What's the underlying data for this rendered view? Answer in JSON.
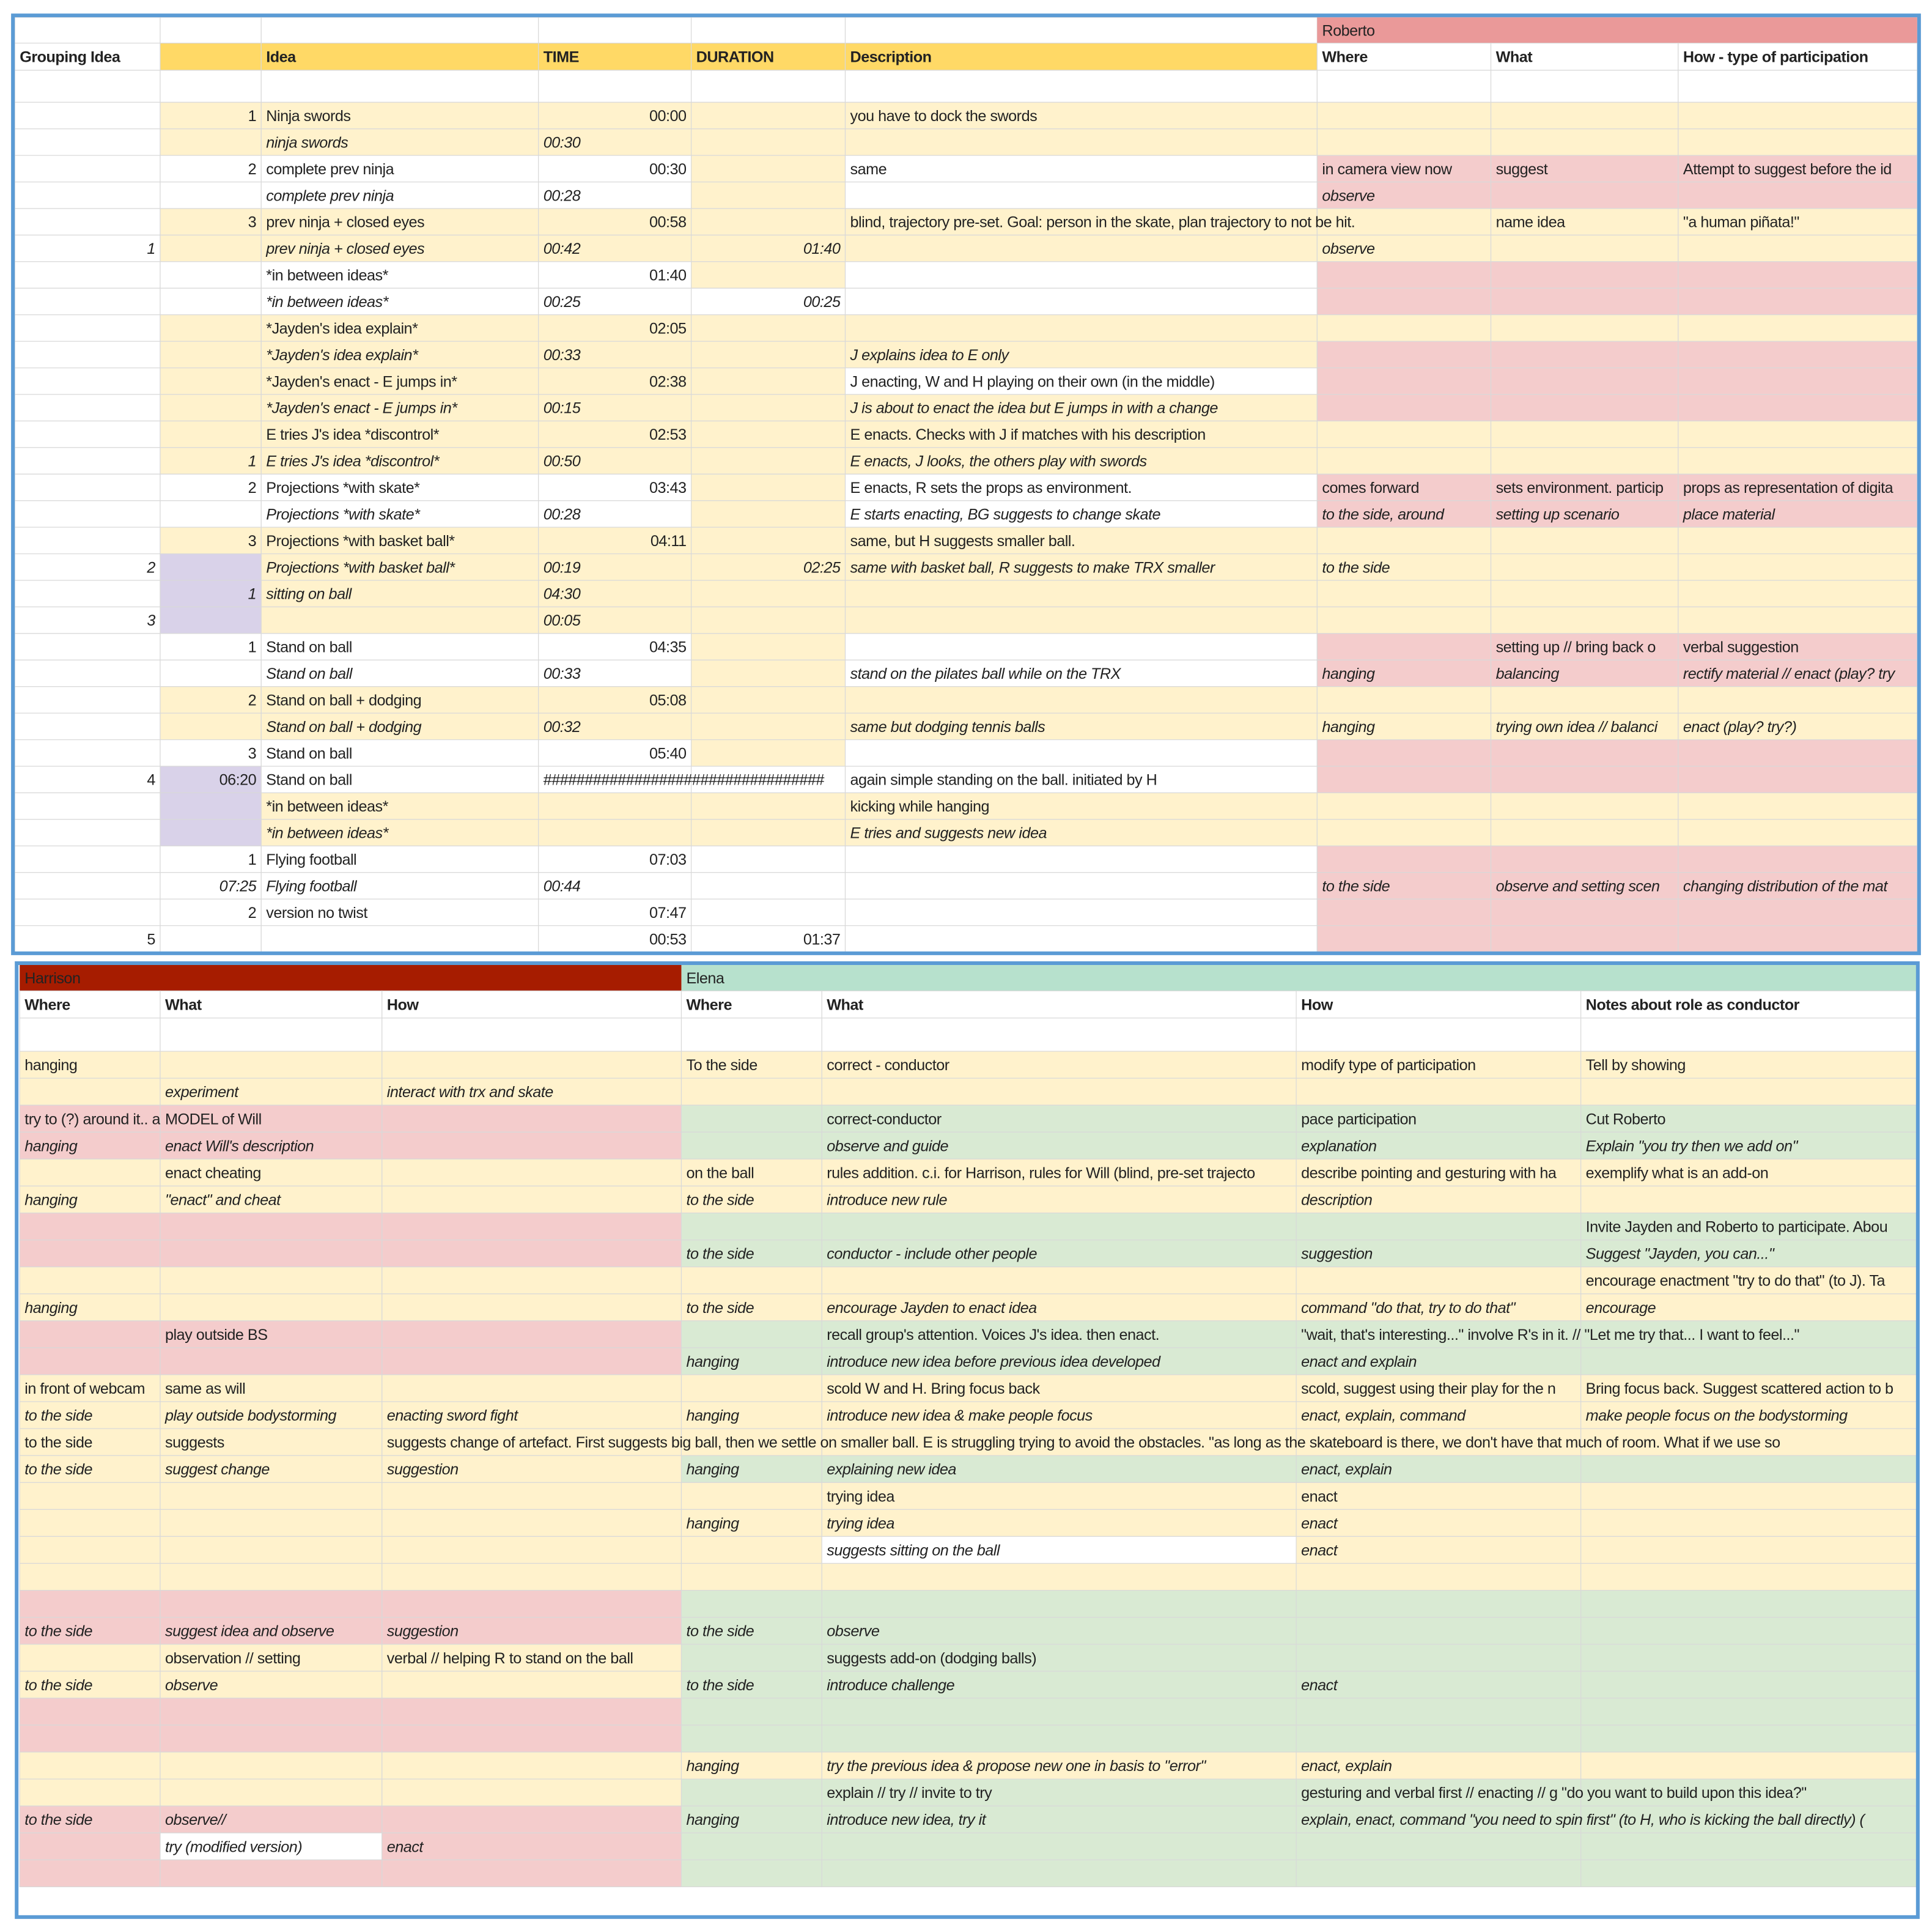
{
  "top": {
    "group": "Roberto",
    "columns": [
      "Grouping Idea",
      null,
      "Idea",
      "TIME",
      "DURATION",
      "Description",
      "Where",
      "What",
      "How - type of participation"
    ],
    "rows": [
      [
        null,
        "1",
        "Ninja swords",
        "00:00",
        null,
        "you have to dock the swords",
        null,
        null,
        null
      ],
      [
        null,
        null,
        "ninja swords",
        "00:30",
        null,
        null,
        null,
        null,
        null
      ],
      [
        null,
        "2",
        "complete prev ninja",
        "00:30",
        null,
        "same",
        "in camera view now",
        "suggest",
        "Attempt to suggest before the id"
      ],
      [
        null,
        null,
        "complete prev ninja",
        "00:28",
        null,
        null,
        "observe",
        null,
        null
      ],
      [
        null,
        "3",
        "prev ninja + closed eyes",
        "00:58",
        null,
        "blind, trajectory pre-set. Goal: person in the skate, plan trajectory to not be hit.",
        null,
        "name idea",
        "\"a human piñata!\""
      ],
      [
        "1",
        null,
        "prev ninja + closed eyes",
        "00:42",
        "01:40",
        null,
        "observe",
        null,
        null
      ],
      [
        null,
        null,
        "*in between ideas*",
        "01:40",
        null,
        null,
        null,
        null,
        null
      ],
      [
        null,
        null,
        "*in between ideas*",
        "00:25",
        "00:25",
        null,
        null,
        null,
        null
      ],
      [
        null,
        null,
        "*Jayden's idea explain*",
        "02:05",
        null,
        null,
        null,
        null,
        null
      ],
      [
        null,
        null,
        "*Jayden's idea explain*",
        "00:33",
        null,
        "J explains idea to E only",
        null,
        null,
        null
      ],
      [
        null,
        null,
        "*Jayden's enact - E jumps in*",
        "02:38",
        null,
        "J enacting, W and H playing on their own (in the middle)",
        null,
        null,
        null
      ],
      [
        null,
        null,
        "*Jayden's enact - E jumps in*",
        "00:15",
        null,
        "J is about to enact the idea but E jumps in with a change",
        null,
        null,
        null
      ],
      [
        null,
        null,
        "E tries J's idea *discontrol*",
        "02:53",
        null,
        "E enacts. Checks with J if matches with his description",
        null,
        null,
        null
      ],
      [
        null,
        "1",
        "E tries J's idea *discontrol*",
        "00:50",
        null,
        "E enacts, J looks, the others play with swords",
        null,
        null,
        null
      ],
      [
        null,
        "2",
        "Projections *with skate*",
        "03:43",
        null,
        "E enacts, R sets the props as environment.",
        "comes forward",
        "sets environment. particip",
        "props as representation of digita"
      ],
      [
        null,
        null,
        "Projections *with skate*",
        "00:28",
        null,
        "E starts enacting, BG suggests to change skate",
        "to the side, around",
        "setting up scenario",
        "place material"
      ],
      [
        null,
        "3",
        "Projections *with basket ball*",
        "04:11",
        null,
        "same, but H suggests smaller ball.",
        null,
        null,
        null
      ],
      [
        "2",
        null,
        "Projections *with basket ball*",
        "00:19",
        "02:25",
        "same with basket ball, R suggests to make TRX smaller",
        "to the side",
        null,
        null
      ],
      [
        null,
        "1",
        "sitting on ball",
        "04:30",
        null,
        null,
        null,
        null,
        null
      ],
      [
        "3",
        null,
        null,
        "00:05",
        null,
        null,
        null,
        null,
        null
      ],
      [
        null,
        "1",
        "Stand on ball",
        "04:35",
        null,
        null,
        null,
        "setting up // bring back o",
        "verbal suggestion"
      ],
      [
        null,
        null,
        "Stand on ball",
        "00:33",
        null,
        "stand on the pilates ball while on the TRX",
        "hanging",
        "balancing",
        "rectify material // enact (play? try"
      ],
      [
        null,
        "2",
        "Stand on ball + dodging",
        "05:08",
        null,
        null,
        null,
        null,
        null
      ],
      [
        null,
        null,
        "Stand on ball + dodging",
        "00:32",
        null,
        "same but dodging tennis balls",
        "hanging",
        "trying own idea // balanci",
        "enact (play? try?)"
      ],
      [
        null,
        "3",
        "Stand on ball",
        "05:40",
        null,
        null,
        null,
        null,
        null
      ],
      [
        "4",
        "06:20",
        "Stand on ball",
        "##################################",
        null,
        "again simple standing on the ball. initiated by H",
        null,
        null,
        null
      ],
      [
        null,
        null,
        "*in between ideas*",
        null,
        null,
        "kicking while hanging",
        null,
        null,
        null
      ],
      [
        null,
        null,
        "*in between ideas*",
        null,
        null,
        "E tries and suggests new idea",
        null,
        null,
        null
      ],
      [
        null,
        "1",
        "Flying football",
        "07:03",
        null,
        null,
        null,
        null,
        null
      ],
      [
        null,
        "07:25",
        "Flying football",
        "00:44",
        null,
        null,
        "to the side",
        "observe and setting scen",
        "changing distribution of the mat"
      ],
      [
        null,
        "2",
        "version no twist",
        "07:47",
        null,
        null,
        null,
        null,
        null
      ],
      [
        "5",
        null,
        null,
        "00:53",
        "01:37",
        null,
        null,
        null,
        null
      ]
    ]
  },
  "bottom": {
    "groups": [
      "Harrison",
      "Elena"
    ],
    "columns": [
      "Where",
      "What",
      "How",
      "Where",
      "What",
      "How",
      "Notes about role as conductor"
    ],
    "rows": [
      [
        "hanging",
        null,
        null,
        "To the side",
        "correct - conductor",
        "modify type of participation",
        "Tell by showing"
      ],
      [
        null,
        "experiment",
        "interact with trx and skate",
        null,
        null,
        null,
        null
      ],
      [
        "try to (?) around it.. a",
        "MODEL of Will",
        null,
        null,
        "correct-conductor",
        "pace participation",
        "Cut Roberto"
      ],
      [
        "hanging",
        "enact Will's description",
        null,
        null,
        "observe and guide",
        "explanation",
        "Explain \"you try then we add on\""
      ],
      [
        null,
        "enact cheating",
        null,
        "on the ball",
        "rules addition. c.i. for Harrison, rules for Will (blind, pre-set trajecto",
        "describe pointing and gesturing with ha",
        "exemplify what is an add-on"
      ],
      [
        "hanging",
        "\"enact\" and cheat",
        null,
        "to the side",
        "introduce new rule",
        "description",
        null
      ],
      [
        null,
        null,
        null,
        null,
        null,
        null,
        "Invite Jayden and Roberto to participate. Abou"
      ],
      [
        null,
        null,
        null,
        "to the side",
        "conductor - include other people",
        "suggestion",
        "Suggest \"Jayden, you can...\""
      ],
      [
        null,
        null,
        null,
        null,
        null,
        null,
        "encourage enactment \"try to do that\" (to J). Ta"
      ],
      [
        "hanging",
        null,
        null,
        "to the side",
        "encourage Jayden to enact idea",
        "command \"do that, try to do that\"",
        "encourage"
      ],
      [
        null,
        "play outside BS",
        null,
        null,
        "recall group's attention. Voices J's idea. then enact.",
        "\"wait, that's interesting...\" involve R's in it. // \"Let me try that... I want to feel...\"",
        null
      ],
      [
        null,
        null,
        null,
        "hanging",
        "introduce new idea before previous idea developed",
        "enact and explain",
        null
      ],
      [
        "in front of webcam",
        "same as will",
        null,
        null,
        "scold W and H. Bring focus back",
        "scold, suggest using their play for the n",
        "Bring focus back. Suggest scattered action to b"
      ],
      [
        "to the side",
        "play outside bodystorming",
        "enacting sword fight",
        "hanging",
        "introduce new idea & make people focus",
        "enact, explain, command",
        "make people focus on the bodystorming"
      ],
      [
        "to the side",
        "suggests",
        "suggests change of artefact. First suggests big ball, then we settle on smaller ball. E is struggling trying to avoid the obstacles. \"as long as the skateboard is there, we don't have that much of room. What if we use so",
        null,
        null,
        null,
        null
      ],
      [
        "to the side",
        "suggest change",
        "suggestion",
        "hanging",
        "explaining new idea",
        "enact, explain",
        null
      ],
      [
        null,
        null,
        null,
        null,
        "trying idea",
        "enact",
        null
      ],
      [
        null,
        null,
        null,
        "hanging",
        "trying idea",
        "enact",
        null
      ],
      [
        null,
        null,
        null,
        null,
        "suggests sitting on the ball",
        "enact",
        null
      ],
      [
        null,
        null,
        null,
        null,
        null,
        null,
        null
      ],
      [
        null,
        null,
        null,
        null,
        null,
        null,
        null
      ],
      [
        "to the side",
        "suggest idea and observe",
        "suggestion",
        "to the side",
        "observe",
        null,
        null
      ],
      [
        null,
        "observation // setting",
        "verbal // helping R to stand on the ball",
        null,
        "suggests add-on (dodging balls)",
        null,
        null
      ],
      [
        "to the side",
        "observe",
        null,
        "to the side",
        "introduce challenge",
        "enact",
        null
      ],
      [
        null,
        null,
        null,
        null,
        null,
        null,
        null
      ],
      [
        null,
        null,
        null,
        null,
        null,
        null,
        null
      ],
      [
        null,
        null,
        null,
        "hanging",
        "try the previous idea & propose new one in basis to \"error\"",
        "enact, explain",
        null
      ],
      [
        null,
        null,
        null,
        null,
        "explain // try // invite to try",
        "gesturing and verbal first // enacting // g \"do you want to build upon this idea?\"",
        null
      ],
      [
        "to the side",
        "observe//",
        null,
        "hanging",
        "introduce new idea, try it",
        "explain, enact, command \"you need to spin first\" (to H, who is kicking the ball directly) (",
        null
      ],
      [
        null,
        "try (modified version)",
        "enact",
        null,
        null,
        null,
        null
      ],
      [
        null,
        null,
        null,
        null,
        null,
        null,
        null
      ]
    ]
  }
}
